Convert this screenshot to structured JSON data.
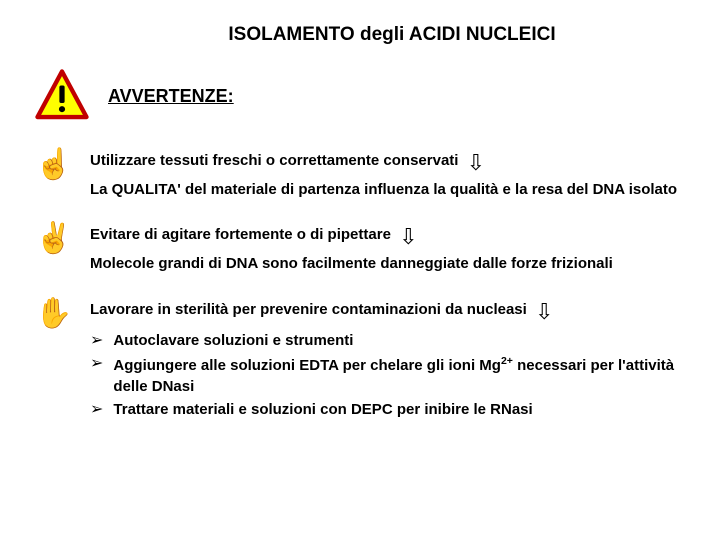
{
  "title": "ISOLAMENTO degli ACIDI NUCLEICI",
  "header_label": "AVVERTENZE:",
  "items": [
    {
      "bullet_glyph": "☝",
      "main": "Utilizzare tessuti freschi o correttamente conservati",
      "arrow_glyph": "⇩",
      "explain": "La  QUALITA' del materiale di partenza influenza la qualità e la resa del DNA isolato"
    },
    {
      "bullet_glyph": "✌",
      "main": "Evitare di agitare fortemente o di pipettare",
      "arrow_glyph": "⇩",
      "explain": "Molecole grandi di DNA sono facilmente danneggiate dalle forze frizionali"
    },
    {
      "bullet_glyph": "✋",
      "main": "Lavorare in sterilità per prevenire contaminazioni da nucleasi",
      "arrow_glyph": "⇩",
      "subitems": [
        {
          "bullet": "➢",
          "text": "Autoclavare soluzioni e strumenti"
        },
        {
          "bullet": "➢",
          "text_html": "Aggiungere alle soluzioni EDTA per chelare gli ioni Mg<sup>2+</sup> necessari per l'attività delle DNasi"
        },
        {
          "bullet": "➢",
          "text": "Trattare materiali e soluzioni con DEPC per inibire le RNasi"
        }
      ]
    }
  ],
  "colors": {
    "warn_border": "#c00000",
    "warn_fill": "#ffff00",
    "warn_bang": "#000000",
    "text": "#000000",
    "bg": "#ffffff"
  }
}
